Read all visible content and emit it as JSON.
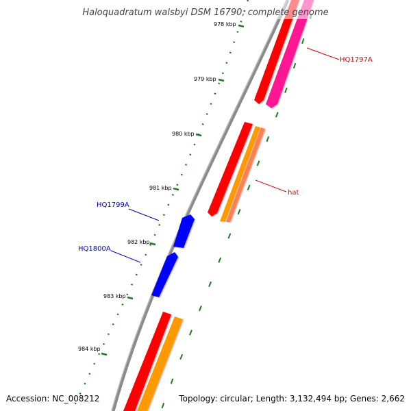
{
  "map": {
    "title": "Haloquadratum walsbyi DSM 16790, complete genome",
    "accession": "Accession: NC_008212",
    "summary": "Topology: circular; Length: 3,132,494 bp; Genes: 2,662"
  },
  "ticks": [
    {
      "label": "978 kbp"
    },
    {
      "label": "979 kbp"
    },
    {
      "label": "980 kbp"
    },
    {
      "label": "981 kbp"
    },
    {
      "label": "982 kbp"
    },
    {
      "label": "983 kbp"
    },
    {
      "label": "984 kbp"
    }
  ],
  "gene_labels": [
    {
      "text": "HQ1797A",
      "color": "#dd0000"
    },
    {
      "text": "hat",
      "color": "#dd0000"
    },
    {
      "text": "HQ1799A",
      "color": "#0000cc"
    },
    {
      "text": "HQ1800A",
      "color": "#0000cc"
    }
  ],
  "colors": {
    "backbone": "#8a8a8a",
    "ticks": "#1e7a1e",
    "cds": "#ff0000",
    "gene_orange": "#ff9900",
    "gene_salmon": "#ff7f50",
    "gene_pink": "#ff1493",
    "gene_blue": "#0000ff"
  }
}
